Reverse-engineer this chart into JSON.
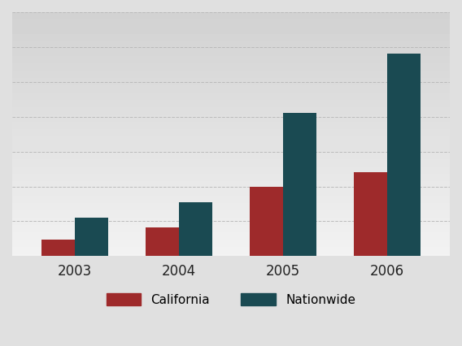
{
  "years": [
    "2003",
    "2004",
    "2005",
    "2006"
  ],
  "california": [
    0.47,
    0.82,
    2.0,
    2.4
  ],
  "nationwide": [
    1.1,
    1.55,
    4.1,
    5.8
  ],
  "california_color": "#9e2a2b",
  "nationwide_color": "#1a4a52",
  "grid_color": "#bbbbbb",
  "bg_color_top": "#dcdcdc",
  "bg_color_bottom": "#f0f0f0",
  "legend_california": "California",
  "legend_nationwide": "Nationwide",
  "bar_width": 0.32,
  "ylim_max": 7.0,
  "tick_fontsize": 12
}
